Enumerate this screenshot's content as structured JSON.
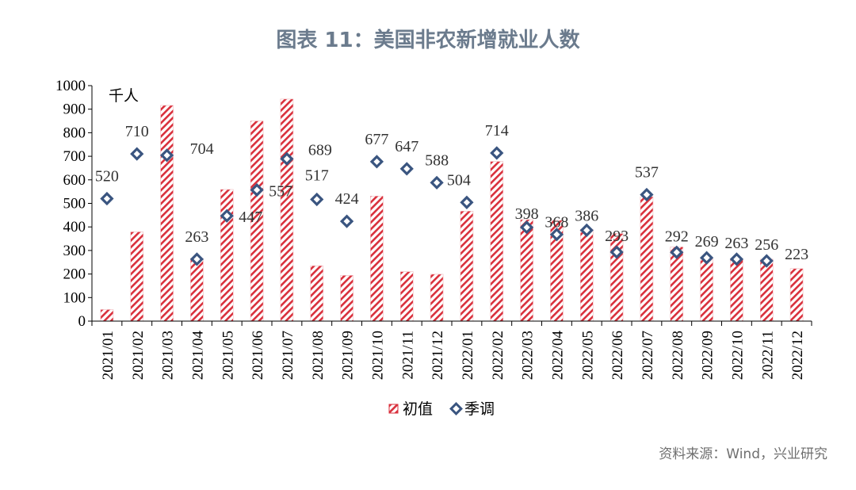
{
  "title": "图表 11：美国非农新增就业人数",
  "source": "资料来源：Wind，兴业研究",
  "chart_data": {
    "type": "bar",
    "unit_label": "千人",
    "ylim": [
      0,
      1000
    ],
    "yticks": [
      0,
      100,
      200,
      300,
      400,
      500,
      600,
      700,
      800,
      900,
      1000
    ],
    "legend_position": "bottom",
    "categories": [
      "2021/01",
      "2021/02",
      "2021/03",
      "2021/04",
      "2021/05",
      "2021/06",
      "2021/07",
      "2021/08",
      "2021/09",
      "2021/10",
      "2021/11",
      "2021/12",
      "2022/01",
      "2022/02",
      "2022/03",
      "2022/04",
      "2022/05",
      "2022/06",
      "2022/07",
      "2022/08",
      "2022/09",
      "2022/10",
      "2022/11",
      "2022/12"
    ],
    "series": [
      {
        "name": "初值",
        "kind": "bar",
        "color": "#d9303c",
        "values": [
          49,
          379,
          916,
          266,
          559,
          850,
          943,
          235,
          194,
          531,
          210,
          199,
          467,
          678,
          431,
          428,
          390,
          372,
          528,
          315,
          263,
          261,
          263,
          223
        ]
      },
      {
        "name": "季调",
        "kind": "scatter",
        "color": "#3a5580",
        "values": [
          520,
          710,
          704,
          263,
          447,
          557,
          689,
          517,
          424,
          677,
          647,
          588,
          504,
          714,
          398,
          368,
          386,
          293,
          537,
          292,
          269,
          263,
          256,
          null
        ]
      }
    ],
    "data_labels": [
      "520",
      "710",
      "704",
      "263",
      "447",
      "557",
      "689",
      "517",
      "424",
      "677",
      "647",
      "588",
      "504",
      "714",
      "398",
      "368",
      "386",
      "293",
      "537",
      "292",
      "269",
      "263",
      "256",
      "223"
    ]
  }
}
